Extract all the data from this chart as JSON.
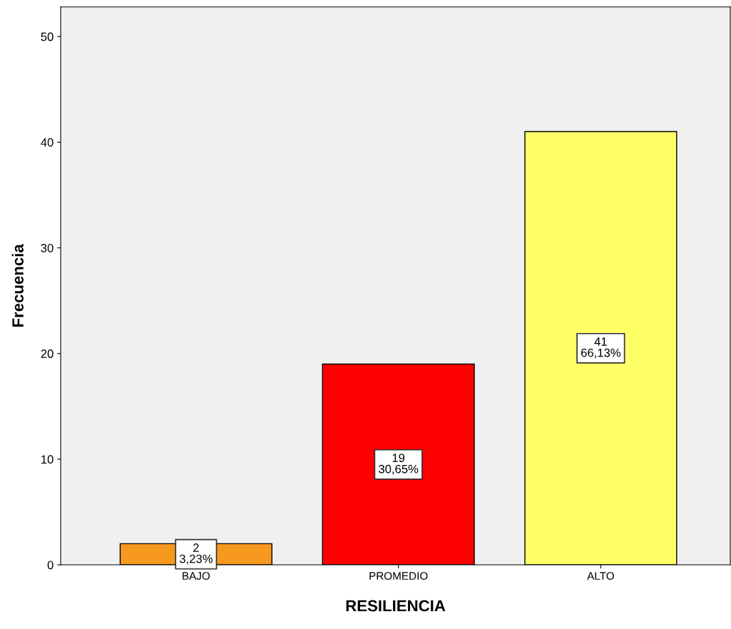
{
  "chart_data": {
    "type": "bar",
    "xlabel": "RESILIENCIA",
    "ylabel": "Frecuencia",
    "categories": [
      "BAJO",
      "PROMEDIO",
      "ALTO"
    ],
    "values": [
      2,
      19,
      41
    ],
    "colors": [
      "#f7991e",
      "#ff0000",
      "#ffff66"
    ],
    "value_labels": [
      "2\n3,23%",
      "19\n30,65%",
      "41\n66,13%"
    ],
    "ylim": [
      0,
      52.8
    ],
    "yticks": [
      0,
      10,
      20,
      30,
      40,
      50
    ],
    "grid": false
  }
}
